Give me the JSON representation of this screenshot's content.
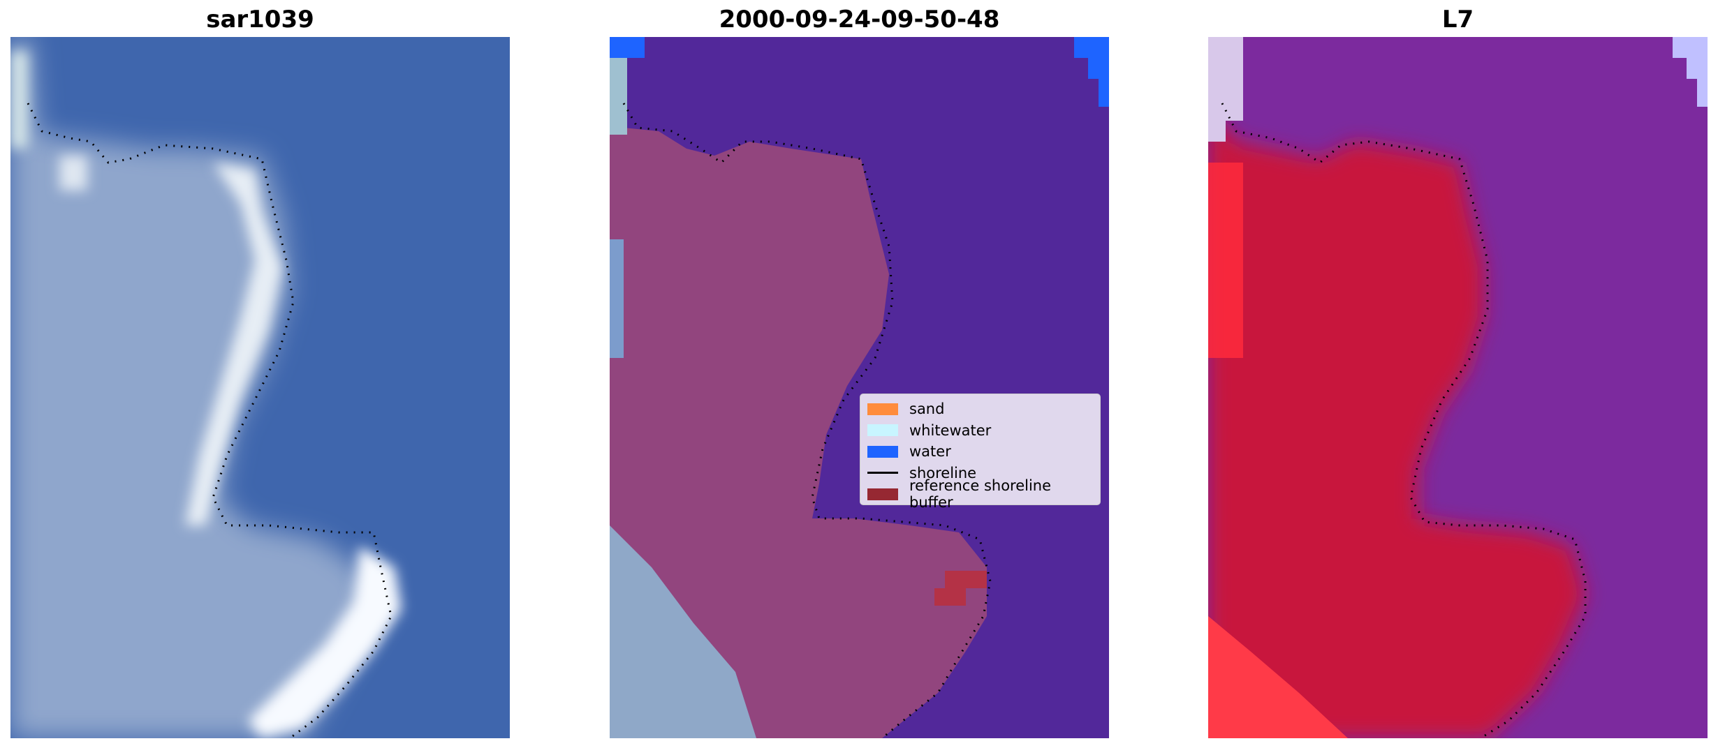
{
  "panels": [
    {
      "title": "sar1039",
      "kind": "rgb-image"
    },
    {
      "title": "2000-09-24-09-50-48",
      "kind": "classified-image"
    },
    {
      "title": "L7",
      "kind": "index-image"
    }
  ],
  "legend": {
    "items": [
      {
        "label": "sand",
        "color": "#ff8c3c"
      },
      {
        "label": "whitewater",
        "color": "#c8f5ff"
      },
      {
        "label": "water",
        "color": "#1e64ff"
      },
      {
        "label": "shoreline",
        "color": "#000000"
      },
      {
        "label": "reference shoreline buffer",
        "color": "#962832"
      }
    ]
  },
  "colors": {
    "sea_rgb": "#3f66ad",
    "land_rgb": "#8fa6cc",
    "water_class": "#52289a",
    "land_class": "#92457e",
    "water_index": "#7c2a9e",
    "land_index": "#c8123c"
  }
}
